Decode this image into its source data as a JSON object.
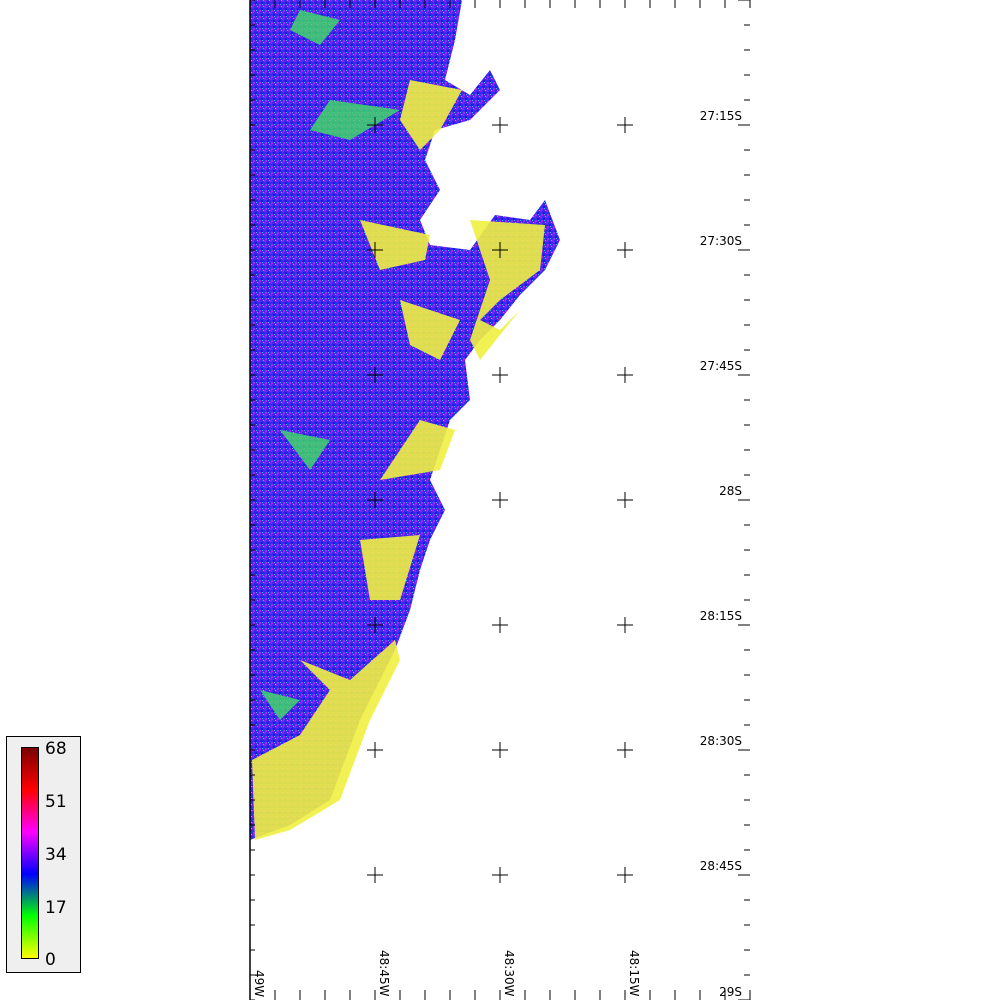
{
  "map": {
    "lat_labels": [
      "27:15S",
      "27:30S",
      "27:45S",
      "28S",
      "28:15S",
      "28:30S",
      "28:45S",
      "29S"
    ],
    "lon_labels": [
      "49W",
      "48:45W",
      "48:30W",
      "48:15W"
    ],
    "colors": {
      "land_low": "#ffff66",
      "land_mid": "#2a2af0",
      "land_high": "#a020f0",
      "ocean": "#ffffff"
    }
  },
  "legend": {
    "ticks": [
      "68",
      "51",
      "34",
      "17",
      "0"
    ],
    "colors": [
      "#7a0000",
      "#ff0000",
      "#ff00ff",
      "#0000ff",
      "#00ff00",
      "#ffff00"
    ]
  }
}
